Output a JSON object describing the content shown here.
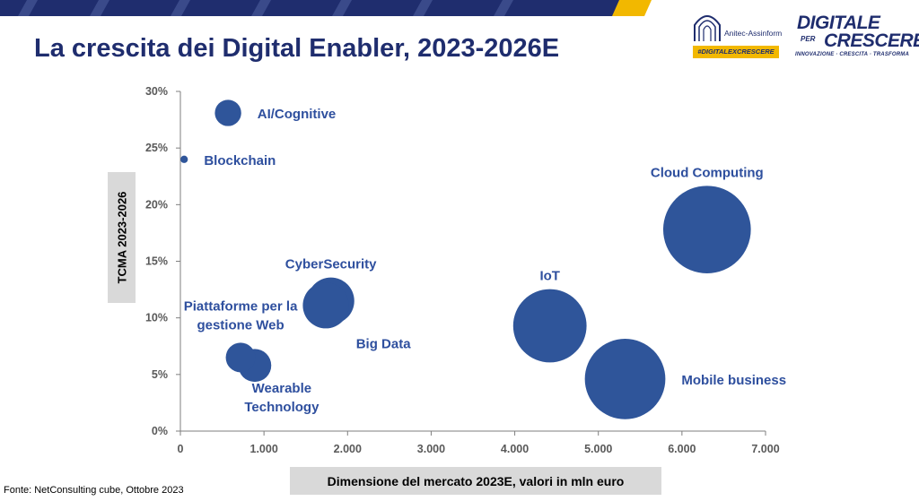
{
  "header": {
    "title": "La crescita dei Digital Enabler, 2023-2026E"
  },
  "logos": {
    "anitec_name": "Anitec-Assinform",
    "anitec_hashtag": "#DIGITALEXCRESCERE",
    "brand_line1": "DIGITALE",
    "brand_per": "PER",
    "brand_line2": "CRESCERE",
    "brand_tagline": "INNOVAZIONE · CRESCITA · TRASFORMA"
  },
  "footer": {
    "source": "Fonte: NetConsulting cube, Ottobre 2023"
  },
  "colors": {
    "bubble": "#2f559a",
    "label": "#2e4f9e",
    "title": "#1f2d6e",
    "band_dark": "#1f2d6e",
    "band_gold": "#f2b800",
    "axis": "#7f7f7f"
  },
  "chart_data": {
    "type": "bubble",
    "title": "La crescita dei Digital Enabler, 2023-2026E",
    "xlabel": "Dimensione del mercato 2023E, valori in mln euro",
    "ylabel": "TCMA 2023-2026",
    "xlim": [
      0,
      7000
    ],
    "ylim": [
      0,
      30
    ],
    "x_ticks": [
      0,
      1000,
      2000,
      3000,
      4000,
      5000,
      6000,
      7000
    ],
    "x_tick_labels": [
      "0",
      "1.000",
      "2.000",
      "3.000",
      "4.000",
      "5.000",
      "6.000",
      "7.000"
    ],
    "y_ticks": [
      0,
      5,
      10,
      15,
      20,
      25,
      30
    ],
    "y_tick_labels": [
      "0%",
      "5%",
      "10%",
      "15%",
      "20%",
      "25%",
      "30%"
    ],
    "grid": false,
    "size_note": "bubble area proportional to market size (x)",
    "series": [
      {
        "name": "AI/Cognitive",
        "x": 570,
        "y": 28.1,
        "label_pos": "right"
      },
      {
        "name": "Blockchain",
        "x": 45,
        "y": 24.0,
        "label_pos": "right"
      },
      {
        "name": "Cloud Computing",
        "x": 6300,
        "y": 17.8,
        "label_pos": "top"
      },
      {
        "name": "CyberSecurity",
        "x": 1800,
        "y": 11.5,
        "label_pos": "top"
      },
      {
        "name": "Big Data",
        "x": 1740,
        "y": 11.1,
        "label_pos": "bottom-right"
      },
      {
        "name": "IoT",
        "x": 4420,
        "y": 9.3,
        "label_pos": "top"
      },
      {
        "name": "Piattaforme per la gestione Web",
        "label_lines": [
          "Piattaforme per la",
          "gestione Web"
        ],
        "x": 720,
        "y": 6.5,
        "label_pos": "top-left"
      },
      {
        "name": "Wearable Technology",
        "label_lines": [
          "Wearable",
          "Technology"
        ],
        "x": 890,
        "y": 5.8,
        "label_pos": "bottom"
      },
      {
        "name": "Mobile business",
        "x": 5320,
        "y": 4.6,
        "label_pos": "right"
      }
    ]
  }
}
